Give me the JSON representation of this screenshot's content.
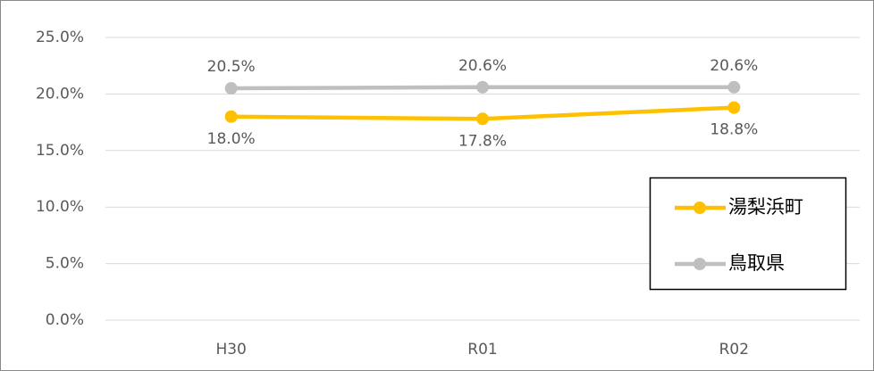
{
  "chart_data": {
    "type": "line",
    "categories": [
      "H30",
      "R01",
      "R02"
    ],
    "series": [
      {
        "name": "湯梨浜町",
        "color": "#FFC000",
        "values": [
          18.0,
          17.8,
          18.8
        ],
        "value_labels": [
          "18.0%",
          "17.8%",
          "18.8%"
        ]
      },
      {
        "name": "鳥取県",
        "color": "#BFBFBF",
        "values": [
          20.5,
          20.6,
          20.6
        ],
        "value_labels": [
          "20.5%",
          "20.6%",
          "20.6%"
        ]
      }
    ],
    "ylim": [
      0,
      25
    ],
    "yticks": [
      {
        "value": 0,
        "label": "0.0%"
      },
      {
        "value": 5,
        "label": "5.0%"
      },
      {
        "value": 10,
        "label": "10.0%"
      },
      {
        "value": 15,
        "label": "15.0%"
      },
      {
        "value": 20,
        "label": "20.0%"
      },
      {
        "value": 25,
        "label": "25.0%"
      }
    ],
    "grid": true
  }
}
